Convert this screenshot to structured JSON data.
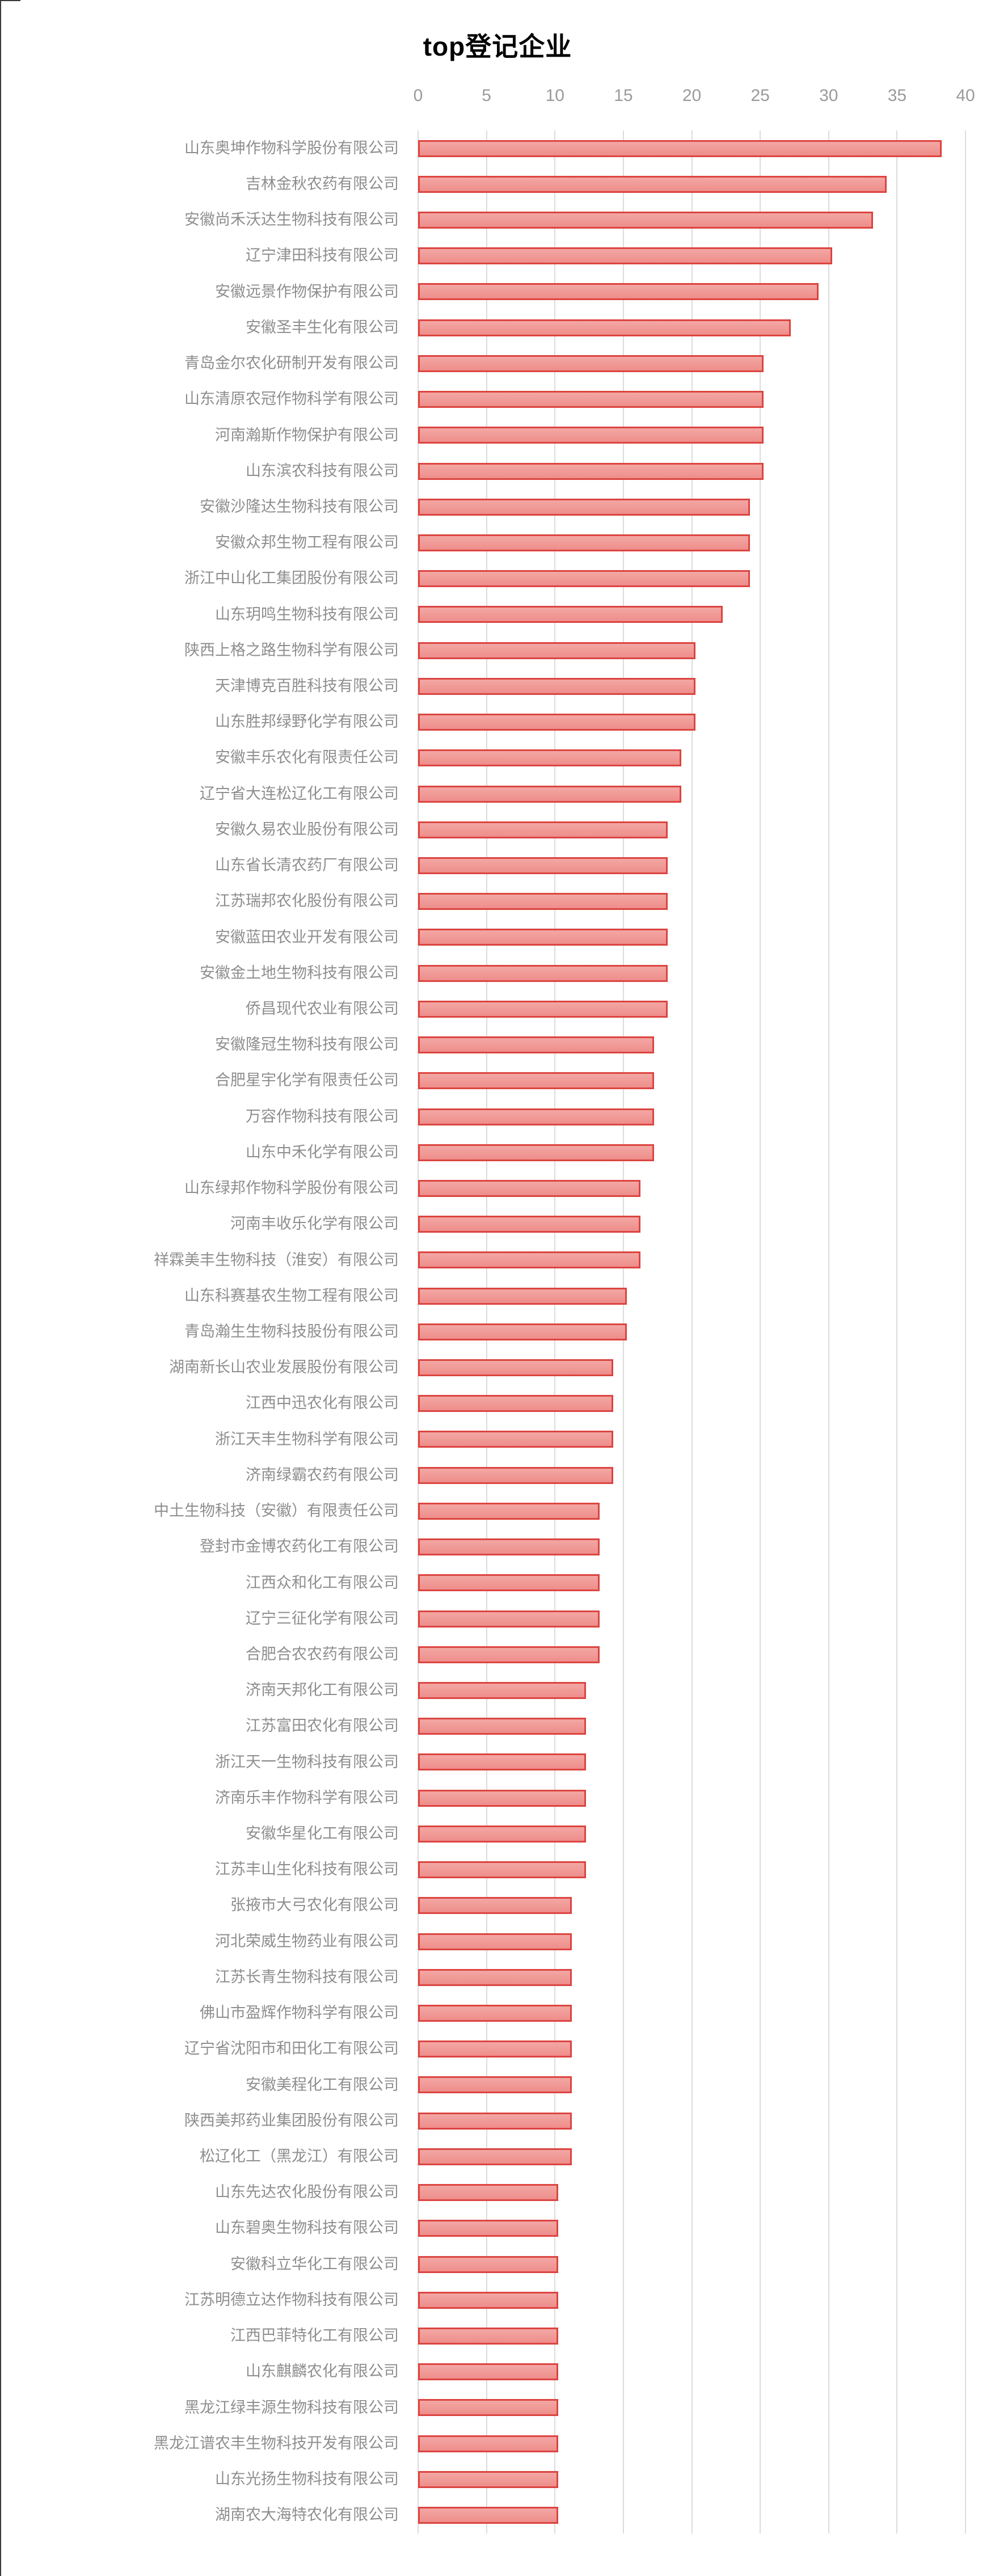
{
  "figure": {
    "title": "top登记企业"
  },
  "axis": {
    "ticks": [
      "0",
      "5",
      "10",
      "15",
      "20",
      "25",
      "30",
      "35",
      "40"
    ],
    "min": 0,
    "max": 40
  },
  "colors": {
    "bar_fill_top": "#f3a7a4",
    "bar_fill_bottom": "#ee8e8b",
    "bar_border": "#dc4440",
    "gridline": "#dcdcdc",
    "label_text": "#8e8e8e",
    "tick_text": "#9a9a9a",
    "title_text": "#000000"
  },
  "chart_data": {
    "type": "bar",
    "orientation": "horizontal",
    "title": "top登记企业",
    "xlabel": "",
    "ylabel": "",
    "xlim": [
      0,
      40
    ],
    "grid": true,
    "legend": false,
    "categories": [
      "山东奥坤作物科学股份有限公司",
      "吉林金秋农药有限公司",
      "安徽尚禾沃达生物科技有限公司",
      "辽宁津田科技有限公司",
      "安徽远景作物保护有限公司",
      "安徽圣丰生化有限公司",
      "青岛金尔农化研制开发有限公司",
      "山东清原农冠作物科学有限公司",
      "河南瀚斯作物保护有限公司",
      "山东滨农科技有限公司",
      "安徽沙隆达生物科技有限公司",
      "安徽众邦生物工程有限公司",
      "浙江中山化工集团股份有限公司",
      "山东玥鸣生物科技有限公司",
      "陕西上格之路生物科学有限公司",
      "天津博克百胜科技有限公司",
      "山东胜邦绿野化学有限公司",
      "安徽丰乐农化有限责任公司",
      "辽宁省大连松辽化工有限公司",
      "安徽久易农业股份有限公司",
      "山东省长清农药厂有限公司",
      "江苏瑞邦农化股份有限公司",
      "安徽蓝田农业开发有限公司",
      "安徽金土地生物科技有限公司",
      "侨昌现代农业有限公司",
      "安徽隆冠生物科技有限公司",
      "合肥星宇化学有限责任公司",
      "万容作物科技有限公司",
      "山东中禾化学有限公司",
      "山东绿邦作物科学股份有限公司",
      "河南丰收乐化学有限公司",
      "祥霖美丰生物科技（淮安）有限公司",
      "山东科赛基农生物工程有限公司",
      "青岛瀚生生物科技股份有限公司",
      "湖南新长山农业发展股份有限公司",
      "江西中迅农化有限公司",
      "浙江天丰生物科学有限公司",
      "济南绿霸农药有限公司",
      "中土生物科技（安徽）有限责任公司",
      "登封市金博农药化工有限公司",
      "江西众和化工有限公司",
      "辽宁三征化学有限公司",
      "合肥合农农药有限公司",
      "济南天邦化工有限公司",
      "江苏富田农化有限公司",
      "浙江天一生物科技有限公司",
      "济南乐丰作物科学有限公司",
      "安徽华星化工有限公司",
      "江苏丰山生化科技有限公司",
      "张掖市大弓农化有限公司",
      "河北荣威生物药业有限公司",
      "江苏长青生物科技有限公司",
      "佛山市盈辉作物科学有限公司",
      "辽宁省沈阳市和田化工有限公司",
      "安徽美程化工有限公司",
      "陕西美邦药业集团股份有限公司",
      "松辽化工（黑龙江）有限公司",
      "山东先达农化股份有限公司",
      "山东碧奥生物科技有限公司",
      "安徽科立华化工有限公司",
      "江苏明德立达作物科技有限公司",
      "江西巴菲特化工有限公司",
      "山东麒麟农化有限公司",
      "黑龙江绿丰源生物科技有限公司",
      "黑龙江谱农丰生物科技开发有限公司",
      "山东光扬生物科技有限公司",
      "湖南农大海特农化有限公司"
    ],
    "values": [
      38,
      34,
      33,
      30,
      29,
      27,
      25,
      25,
      25,
      25,
      24,
      24,
      24,
      22,
      20,
      20,
      20,
      19,
      19,
      18,
      18,
      18,
      18,
      18,
      18,
      17,
      17,
      17,
      17,
      16,
      16,
      16,
      15,
      15,
      14,
      14,
      14,
      14,
      13,
      13,
      13,
      13,
      13,
      12,
      12,
      12,
      12,
      12,
      12,
      11,
      11,
      11,
      11,
      11,
      11,
      11,
      11,
      10,
      10,
      10,
      10,
      10,
      10,
      10,
      10,
      10,
      10
    ]
  }
}
